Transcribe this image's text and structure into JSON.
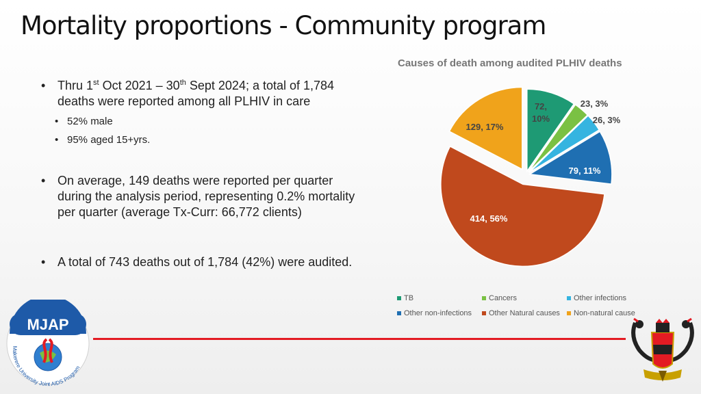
{
  "slide": {
    "title": "Mortality proportions - Community program"
  },
  "bullets": {
    "b1_pre": "Thru 1",
    "b1_sup1": "st",
    "b1_mid": " Oct 2021 – 30",
    "b1_sup2": "th",
    "b1_post": " Sept 2024; a total of 1,784 deaths were reported among all PLHIV in care",
    "sub1": "52% male",
    "sub2": "95% aged 15+yrs.",
    "b2": "On average, 149 deaths were reported per quarter during the analysis period, representing 0.2% mortality per quarter (average Tx-Curr: 66,772 clients)",
    "b3": "A total of 743 deaths out of 1,784 (42%) were audited."
  },
  "chart_data": {
    "type": "pie",
    "title": "Causes of death among audited PLHIV deaths",
    "labels": [
      "TB",
      "Cancers",
      "Other infections",
      "Other non-infections",
      "Other Natural causes",
      "Non-natural causes"
    ],
    "values": [
      72,
      23,
      26,
      79,
      414,
      129
    ],
    "percent": [
      10,
      3,
      3,
      11,
      56,
      17
    ],
    "data_labels": [
      "72,\n10%",
      "23, 3%",
      "26, 3%",
      "79, 11%",
      "414, 56%",
      "129, 17%"
    ],
    "legend_placement": "bottom",
    "legend_text": [
      "TB",
      "Cancers",
      "Other  infections",
      "Other non-infections",
      "Other Natural causes",
      "Non-natural cause"
    ],
    "colors": [
      "#1e9a74",
      "#7ac143",
      "#35b4e0",
      "#1f6fb2",
      "#c0491d",
      "#f0a31b"
    ]
  },
  "logo": {
    "name": "MJAP",
    "ring_text": "Makerere University Joint AIDS Program"
  },
  "colors": {
    "accent_line": "#e31b23"
  }
}
